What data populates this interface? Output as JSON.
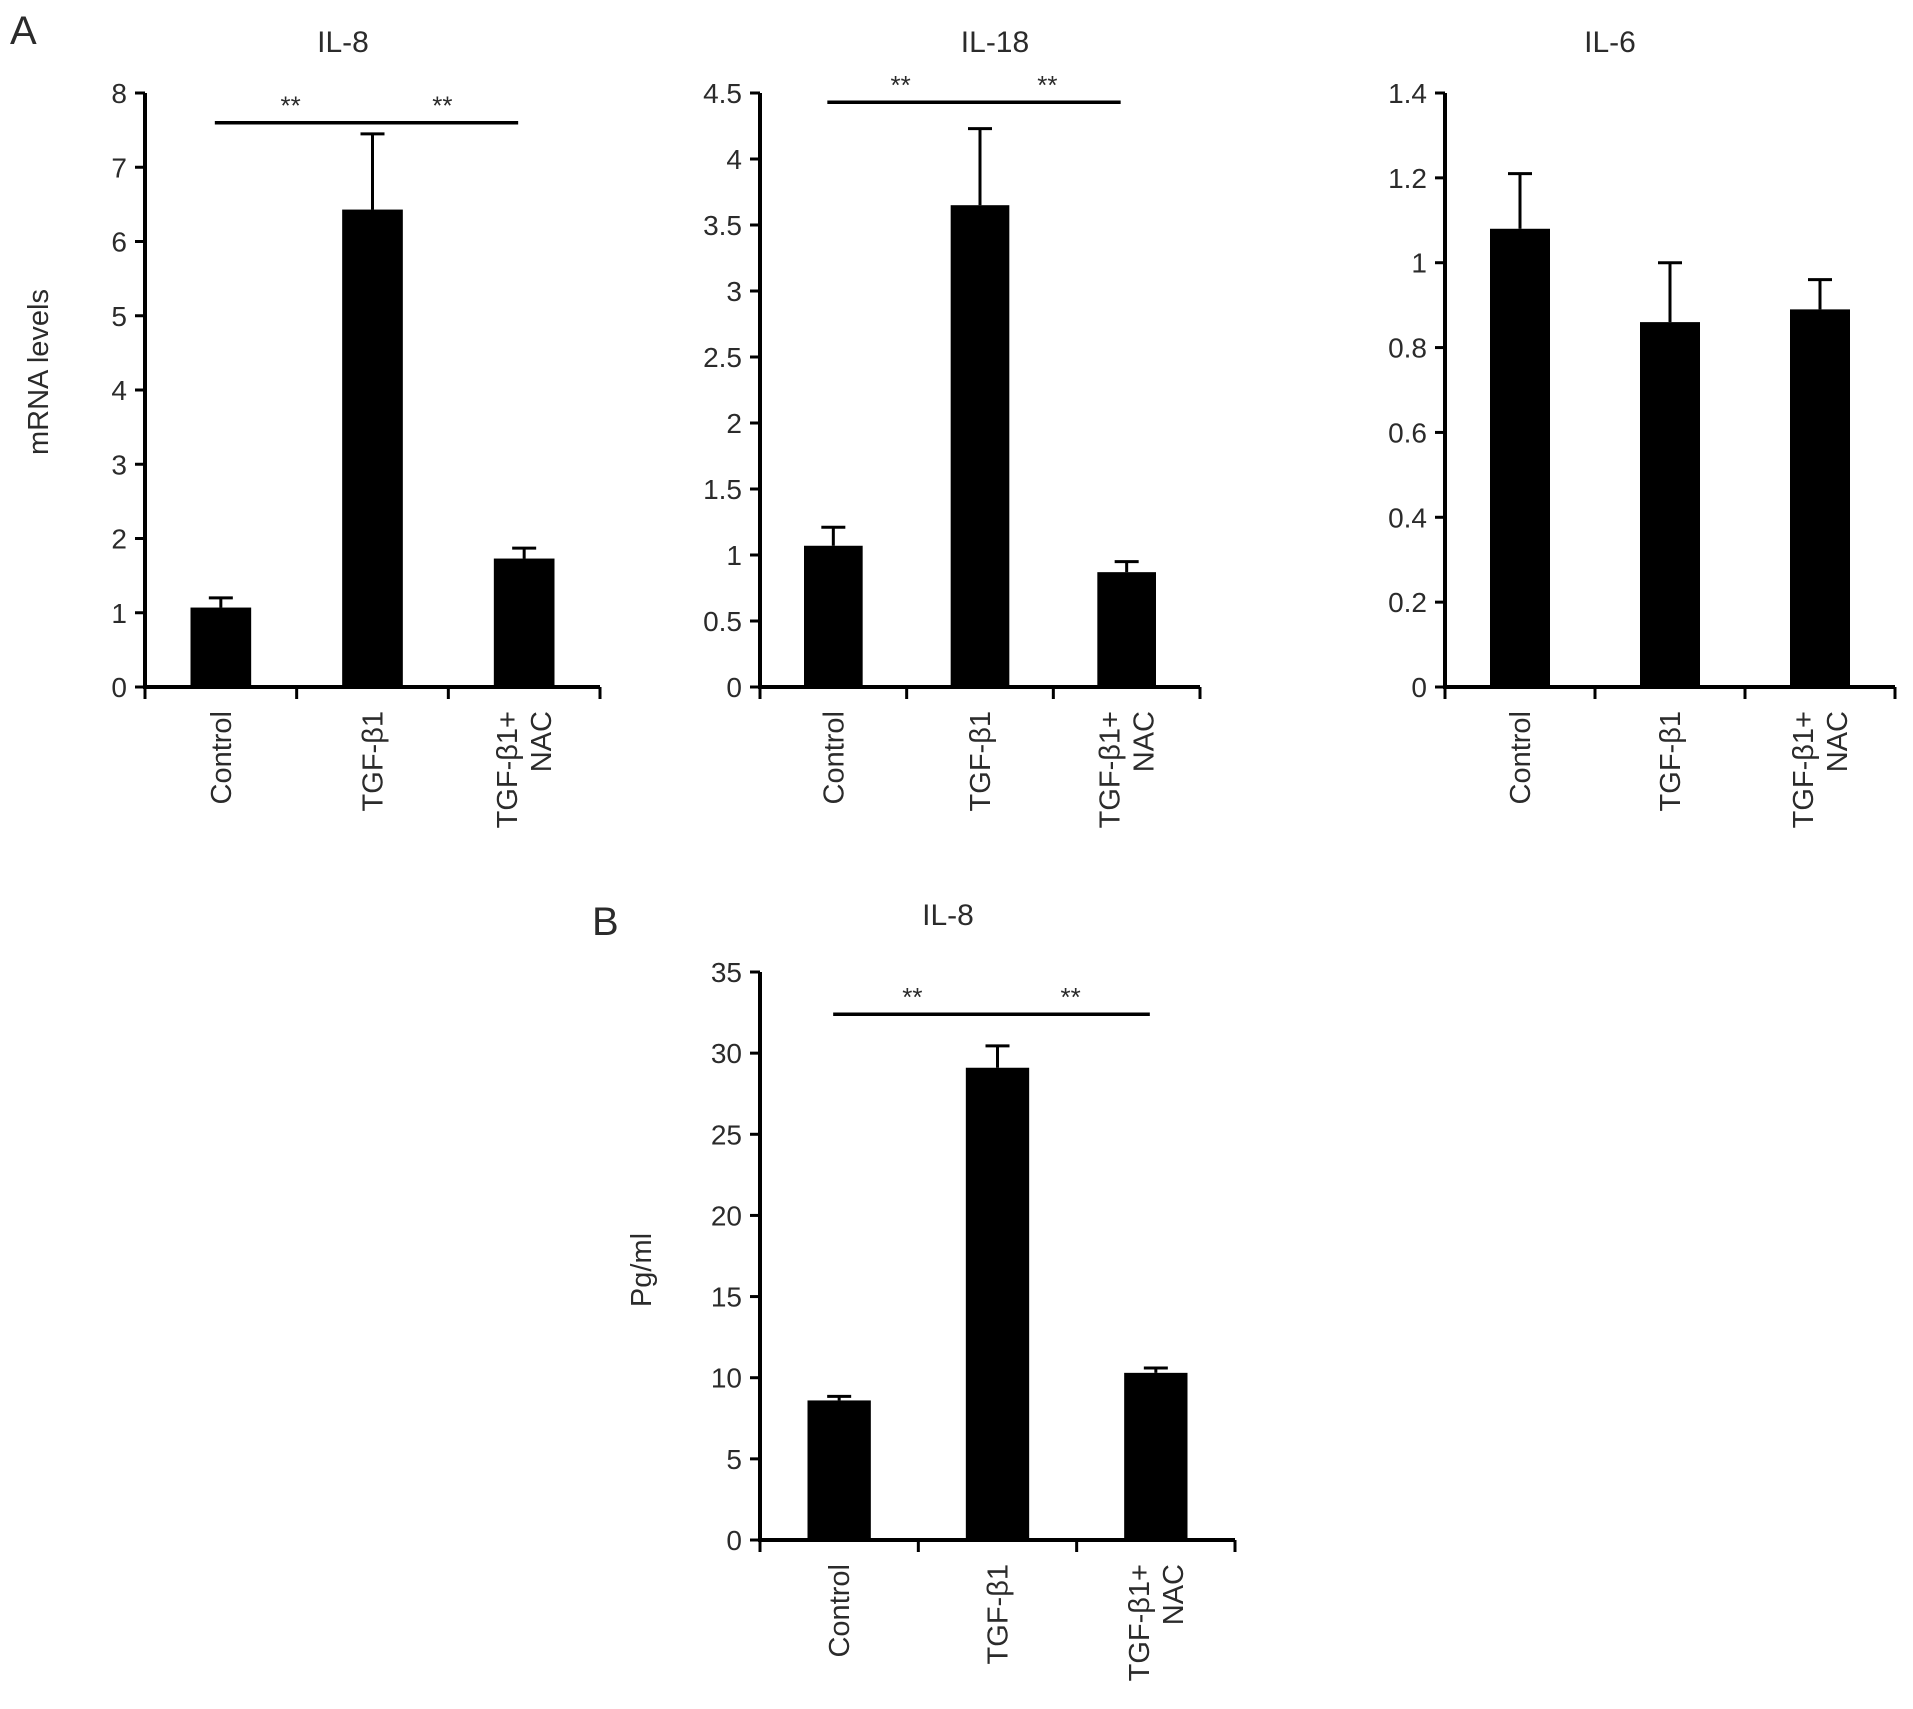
{
  "panels": [
    {
      "label": "A"
    },
    {
      "label": "B"
    }
  ],
  "colors": {
    "bar": "#000000",
    "axis": "#000000",
    "text": "#2b2b2b",
    "significance_text": "#777777"
  },
  "chart_data": [
    {
      "type": "bar",
      "panel": "A",
      "title": "IL-8",
      "ylabel": "mRNA levels",
      "xlabel": "",
      "categories": [
        [
          "Control"
        ],
        [
          "TGF-β1"
        ],
        [
          "TGF-β1+",
          "NAC"
        ]
      ],
      "values": [
        1.07,
        6.43,
        1.73
      ],
      "errors": [
        0.13,
        1.02,
        0.14
      ],
      "ylim": [
        0,
        8
      ],
      "yticks": [
        0,
        1,
        2,
        3,
        4,
        5,
        6,
        7,
        8
      ],
      "ytick_labels": [
        "0",
        "1",
        "2",
        "3",
        "4",
        "5",
        "6",
        "7",
        "8"
      ],
      "significance": [
        {
          "from": 0,
          "to": 1,
          "y": 7.6,
          "label": "**"
        },
        {
          "from": 1,
          "to": 2,
          "y": 7.6,
          "label": "**"
        }
      ],
      "grid": false,
      "legend": "none"
    },
    {
      "type": "bar",
      "panel": "A",
      "title": "IL-18",
      "ylabel": "",
      "xlabel": "",
      "categories": [
        [
          "Control"
        ],
        [
          "TGF-β1"
        ],
        [
          "TGF-β1+",
          "NAC"
        ]
      ],
      "values": [
        1.07,
        3.65,
        0.87
      ],
      "errors": [
        0.14,
        0.58,
        0.08
      ],
      "ylim": [
        0,
        4.5
      ],
      "yticks": [
        0,
        0.5,
        1,
        1.5,
        2,
        2.5,
        3,
        3.5,
        4,
        4.5
      ],
      "ytick_labels": [
        "0",
        "0.5",
        "1",
        "1.5",
        "2",
        "2.5",
        "3",
        "3.5",
        "4",
        "4.5"
      ],
      "significance": [
        {
          "from": 0,
          "to": 1,
          "y": 4.43,
          "label": "**"
        },
        {
          "from": 1,
          "to": 2,
          "y": 4.43,
          "label": "**"
        }
      ],
      "grid": false,
      "legend": "none"
    },
    {
      "type": "bar",
      "panel": "A",
      "title": "IL-6",
      "ylabel": "",
      "xlabel": "",
      "categories": [
        [
          "Control"
        ],
        [
          "TGF-β1"
        ],
        [
          "TGF-β1+",
          "NAC"
        ]
      ],
      "values": [
        1.08,
        0.86,
        0.89
      ],
      "errors": [
        0.13,
        0.14,
        0.07
      ],
      "ylim": [
        0,
        1.4
      ],
      "yticks": [
        0,
        0.2,
        0.4,
        0.6,
        0.8,
        1,
        1.2,
        1.4
      ],
      "ytick_labels": [
        "0",
        "0.2",
        "0.4",
        "0.6",
        "0.8",
        "1",
        "1.2",
        "1.4"
      ],
      "significance": [],
      "grid": false,
      "legend": "none"
    },
    {
      "type": "bar",
      "panel": "B",
      "title": "IL-8",
      "ylabel": "Pg/ml",
      "xlabel": "",
      "categories": [
        [
          "Control"
        ],
        [
          "TGF-β1"
        ],
        [
          "TGF-β1+",
          "NAC"
        ]
      ],
      "values": [
        8.6,
        29.1,
        10.3
      ],
      "errors": [
        0.25,
        1.35,
        0.3
      ],
      "ylim": [
        0,
        35
      ],
      "yticks": [
        0,
        5,
        10,
        15,
        20,
        25,
        30,
        35
      ],
      "ytick_labels": [
        "0",
        "5",
        "10",
        "15",
        "20",
        "25",
        "30",
        "35"
      ],
      "significance": [
        {
          "from": 0,
          "to": 1,
          "y": 32.4,
          "label": "**"
        },
        {
          "from": 1,
          "to": 2,
          "y": 32.4,
          "label": "**"
        }
      ],
      "grid": false,
      "legend": "none"
    }
  ]
}
